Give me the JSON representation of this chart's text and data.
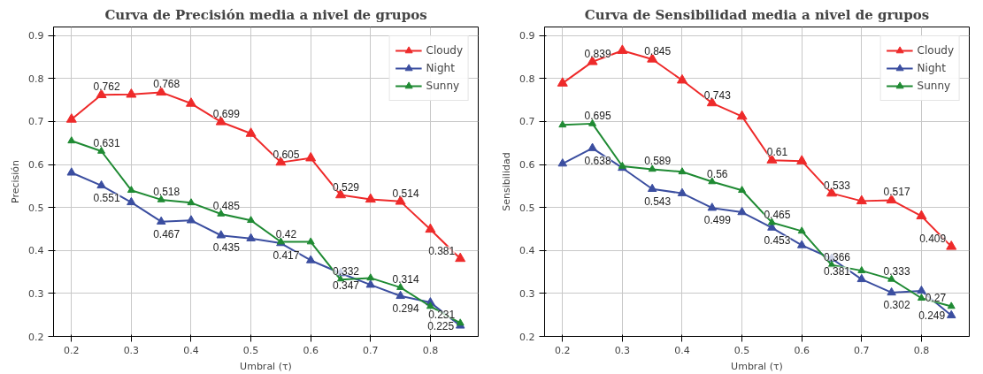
{
  "chart_data": [
    {
      "type": "line",
      "title": "Curva de Precisión media a nivel de grupos",
      "xlabel": "Umbral (τ)",
      "ylabel": "Precisión",
      "x": [
        0.2,
        0.25,
        0.3,
        0.35,
        0.4,
        0.45,
        0.5,
        0.55,
        0.6,
        0.65,
        0.7,
        0.75,
        0.8,
        0.85
      ],
      "series": [
        {
          "name": "Cloudy",
          "color": "#ee2a2a",
          "values": [
            0.705,
            0.762,
            0.763,
            0.768,
            0.742,
            0.699,
            0.672,
            0.605,
            0.615,
            0.529,
            0.519,
            0.514,
            0.449,
            0.381
          ],
          "value_labels": [
            null,
            "0.762",
            null,
            "0.768",
            null,
            "0.699",
            null,
            "0.605",
            null,
            "0.529",
            null,
            "0.514",
            null,
            "0.381"
          ]
        },
        {
          "name": "Night",
          "color": "#3b4ea0",
          "values": [
            0.581,
            0.551,
            0.512,
            0.467,
            0.47,
            0.435,
            0.428,
            0.417,
            0.377,
            0.347,
            0.32,
            0.294,
            0.279,
            0.225
          ],
          "value_labels": [
            null,
            "0.551",
            null,
            "0.467",
            null,
            "0.435",
            null,
            "0.417",
            null,
            "0.347",
            null,
            "0.294",
            null,
            "0.225"
          ]
        },
        {
          "name": "Sunny",
          "color": "#1f8a33",
          "values": [
            0.655,
            0.631,
            0.54,
            0.518,
            0.511,
            0.485,
            0.47,
            0.42,
            0.42,
            0.332,
            0.336,
            0.314,
            0.27,
            0.231
          ],
          "value_labels": [
            null,
            "0.631",
            null,
            "0.518",
            null,
            "0.485",
            null,
            "0.42",
            null,
            "0.332",
            null,
            "0.314",
            null,
            "0.231"
          ]
        }
      ],
      "xlim": [
        0.17,
        0.88
      ],
      "xticks": [
        0.2,
        0.3,
        0.4,
        0.5,
        0.6,
        0.7,
        0.8
      ],
      "ylim": [
        0.2,
        0.92
      ],
      "yticks": [
        0.2,
        0.3,
        0.4,
        0.5,
        0.6,
        0.7,
        0.8,
        0.9
      ],
      "grid": true,
      "legend": "top right",
      "marker": "triangle",
      "line_style": "solid"
    },
    {
      "type": "line",
      "title": "Curva de Sensibilidad media a nivel de grupos",
      "xlabel": "Umbral (τ)",
      "ylabel": "Sensibilidad",
      "x": [
        0.2,
        0.25,
        0.3,
        0.35,
        0.4,
        0.45,
        0.5,
        0.55,
        0.6,
        0.65,
        0.7,
        0.75,
        0.8,
        0.85
      ],
      "series": [
        {
          "name": "Cloudy",
          "color": "#ee2a2a",
          "values": [
            0.789,
            0.839,
            0.865,
            0.845,
            0.796,
            0.743,
            0.712,
            0.61,
            0.608,
            0.533,
            0.515,
            0.517,
            0.48,
            0.409
          ],
          "value_labels": [
            null,
            "0.839",
            null,
            "0.845",
            null,
            "0.743",
            null,
            "0.61",
            null,
            "0.533",
            null,
            "0.517",
            null,
            "0.409"
          ]
        },
        {
          "name": "Night",
          "color": "#3b4ea0",
          "values": [
            0.602,
            0.638,
            0.592,
            0.543,
            0.533,
            0.499,
            0.489,
            0.453,
            0.412,
            0.381,
            0.333,
            0.302,
            0.306,
            0.249
          ],
          "value_labels": [
            null,
            "0.638",
            null,
            "0.543",
            null,
            "0.499",
            null,
            "0.453",
            null,
            "0.381",
            null,
            "0.302",
            null,
            "0.249"
          ]
        },
        {
          "name": "Sunny",
          "color": "#1f8a33",
          "values": [
            0.692,
            0.695,
            0.596,
            0.589,
            0.583,
            0.56,
            0.54,
            0.465,
            0.445,
            0.366,
            0.353,
            0.333,
            0.289,
            0.27
          ],
          "value_labels": [
            null,
            "0.695",
            null,
            "0.589",
            null,
            "0.56",
            null,
            "0.465",
            null,
            "0.366",
            null,
            "0.333",
            null,
            "0.27"
          ]
        }
      ],
      "xlim": [
        0.17,
        0.88
      ],
      "xticks": [
        0.2,
        0.3,
        0.4,
        0.5,
        0.6,
        0.7,
        0.8
      ],
      "ylim": [
        0.2,
        0.92
      ],
      "yticks": [
        0.2,
        0.3,
        0.4,
        0.5,
        0.6,
        0.7,
        0.8,
        0.9
      ],
      "grid": true,
      "legend": "top right",
      "marker": "triangle",
      "line_style": "solid"
    }
  ]
}
